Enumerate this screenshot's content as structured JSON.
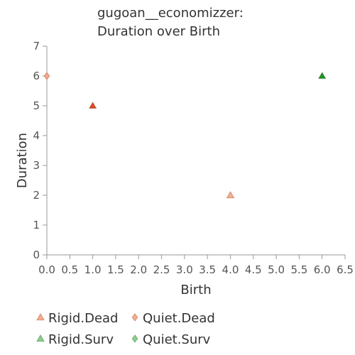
{
  "chart_data": {
    "type": "scatter",
    "title_line1": "gugoan__economizzer:",
    "title_line2": "Duration over Birth",
    "xlabel": "Birth",
    "ylabel": "Duration",
    "xlim": [
      0,
      6.5
    ],
    "ylim": [
      0,
      7
    ],
    "xticks": [
      "0.0",
      "0.5",
      "1.0",
      "1.5",
      "2.0",
      "2.5",
      "3.0",
      "3.5",
      "4.0",
      "4.5",
      "5.0",
      "5.5",
      "6.0",
      "6.5"
    ],
    "yticks": [
      "0",
      "1",
      "2",
      "3",
      "4",
      "5",
      "6",
      "7"
    ],
    "grid": false,
    "legend_position": "bottom",
    "series": [
      {
        "name": "Rigid.Dead",
        "marker": "triangle",
        "color": "#f4a582",
        "points": [
          [
            1.0,
            5.0
          ],
          [
            4.0,
            2.0
          ]
        ]
      },
      {
        "name": "Quiet.Dead",
        "marker": "diamond",
        "color": "#f4a582",
        "points": [
          [
            0.0,
            6.0
          ]
        ]
      },
      {
        "name": "Rigid.Surv",
        "marker": "triangle",
        "color": "#7fc97f",
        "points": [
          [
            6.0,
            6.0
          ]
        ]
      },
      {
        "name": "Quiet.Surv",
        "marker": "diamond",
        "color": "#7fc97f",
        "points": []
      }
    ],
    "overlay_points": [
      {
        "x": 1.0,
        "y": 5.0,
        "marker": "triangle",
        "color": "#e8401c"
      },
      {
        "x": 6.0,
        "y": 6.0,
        "marker": "triangle",
        "color": "#1a9a1a"
      }
    ]
  }
}
